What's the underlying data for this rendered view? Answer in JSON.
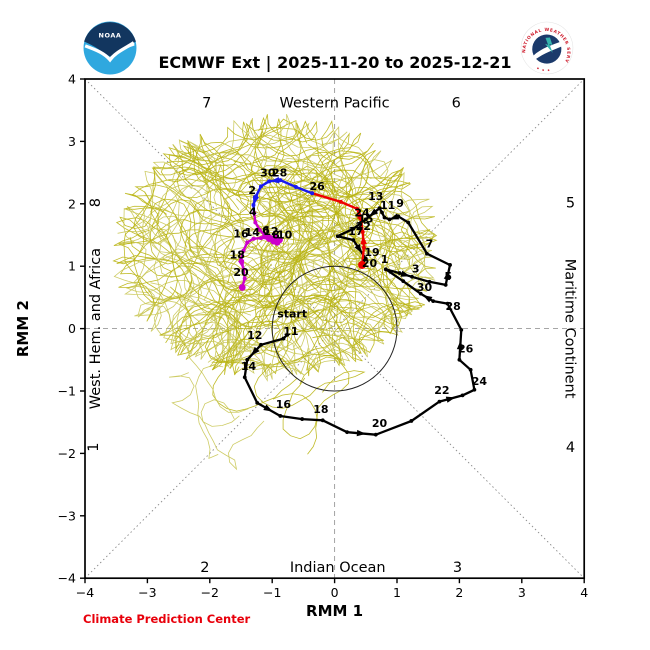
{
  "header": {
    "title": "ECMWF Ext | 2025-11-20 to 2025-12-21"
  },
  "logos": {
    "noaa_label": "NOAA",
    "nws_label": "NATIONAL WEATHER SERVICE"
  },
  "footer": {
    "credit": "Climate Prediction Center",
    "credit_color": "#e8000b"
  },
  "chart_data": {
    "type": "line",
    "title": "ECMWF Ext | 2025-11-20 to 2025-12-21",
    "xlabel": "RMM 1",
    "ylabel": "RMM 2",
    "xlim": [
      -4,
      4
    ],
    "ylim": [
      -4,
      4
    ],
    "xticks": [
      -4,
      -3,
      -2,
      -1,
      0,
      1,
      2,
      3,
      4
    ],
    "tick_labels": [
      "−4",
      "−3",
      "−2",
      "−1",
      "0",
      "1",
      "2",
      "3",
      "4"
    ],
    "grid": false,
    "unit_circle_radius": 1,
    "start_label": "start",
    "region_labels": [
      {
        "text": "7",
        "x": -2.05,
        "y": 3.62,
        "rotate": 0
      },
      {
        "text": "Western Pacific",
        "x": 0.0,
        "y": 3.62,
        "rotate": 0
      },
      {
        "text": "6",
        "x": 1.95,
        "y": 3.62,
        "rotate": 0
      },
      {
        "text": "8",
        "x": -3.84,
        "y": 2.02,
        "rotate": -90
      },
      {
        "text": "West. Hem. and Africa",
        "x": -3.84,
        "y": 0.0,
        "rotate": -90
      },
      {
        "text": "1",
        "x": -3.87,
        "y": -1.9,
        "rotate": -90
      },
      {
        "text": "5",
        "x": 3.78,
        "y": 2.02,
        "rotate": 0
      },
      {
        "text": "Maritime Continent",
        "x": 3.78,
        "y": 0.0,
        "rotate": 90
      },
      {
        "text": "4",
        "x": 3.78,
        "y": -1.9,
        "rotate": 0
      },
      {
        "text": "2",
        "x": -2.08,
        "y": -3.82,
        "rotate": 0
      },
      {
        "text": "Indian Ocean",
        "x": 0.05,
        "y": -3.82,
        "rotate": 0
      },
      {
        "text": "3",
        "x": 1.97,
        "y": -3.82,
        "rotate": 0
      }
    ],
    "observed": {
      "name": "observed-rmm",
      "color": "#000000",
      "points": [
        [
          -0.76,
          -0.1
        ],
        [
          -0.82,
          -0.16
        ],
        [
          -1.18,
          -0.26
        ],
        [
          -1.4,
          -0.5
        ],
        [
          -1.44,
          -0.78
        ],
        [
          -1.24,
          -1.19
        ],
        [
          -0.87,
          -1.4
        ],
        [
          -0.52,
          -1.45
        ],
        [
          -0.19,
          -1.47
        ],
        [
          0.2,
          -1.66
        ],
        [
          0.66,
          -1.7
        ],
        [
          1.23,
          -1.48
        ],
        [
          1.68,
          -1.17
        ],
        [
          2.05,
          -1.07
        ],
        [
          2.24,
          -0.98
        ],
        [
          2.18,
          -0.66
        ],
        [
          2.0,
          -0.5
        ],
        [
          2.03,
          -0.02
        ],
        [
          1.81,
          0.4
        ],
        [
          1.58,
          0.44
        ],
        [
          1.38,
          0.56
        ],
        [
          1.1,
          0.76
        ],
        [
          0.82,
          0.95
        ],
        [
          1.04,
          0.89
        ],
        [
          1.24,
          0.83
        ],
        [
          1.52,
          0.75
        ],
        [
          1.78,
          0.7
        ],
        [
          1.85,
          1.02
        ],
        [
          1.48,
          1.2
        ],
        [
          1.18,
          1.7
        ],
        [
          1.02,
          1.8
        ],
        [
          0.88,
          1.75
        ],
        [
          0.8,
          1.78
        ],
        [
          0.76,
          1.86
        ],
        [
          0.72,
          1.93
        ],
        [
          0.5,
          1.75
        ],
        [
          0.3,
          1.6
        ],
        [
          0.05,
          1.48
        ],
        [
          0.3,
          1.42
        ],
        [
          0.5,
          1.12
        ],
        [
          0.44,
          1.02
        ]
      ],
      "labels": [
        {
          "t": "start",
          "x": -0.68,
          "y": 0.18
        },
        {
          "t": "11",
          "x": -0.7,
          "y": -0.1
        },
        {
          "t": "12",
          "x": -1.28,
          "y": -0.17
        },
        {
          "t": "14",
          "x": -1.38,
          "y": -0.66
        },
        {
          "t": "16",
          "x": -0.82,
          "y": -1.27
        },
        {
          "t": "18",
          "x": -0.22,
          "y": -1.35
        },
        {
          "t": "20",
          "x": 0.72,
          "y": -1.58
        },
        {
          "t": "22",
          "x": 1.72,
          "y": -1.05
        },
        {
          "t": "24",
          "x": 2.32,
          "y": -0.9
        },
        {
          "t": "26",
          "x": 2.1,
          "y": -0.38
        },
        {
          "t": "28",
          "x": 1.9,
          "y": 0.3
        },
        {
          "t": "30",
          "x": 1.44,
          "y": 0.6
        },
        {
          "t": "1",
          "x": 0.8,
          "y": 1.05
        },
        {
          "t": "3",
          "x": 1.3,
          "y": 0.9
        },
        {
          "t": "5",
          "x": 1.82,
          "y": 0.78
        },
        {
          "t": "7",
          "x": 1.52,
          "y": 1.3
        },
        {
          "t": "9",
          "x": 1.05,
          "y": 1.95
        },
        {
          "t": "11",
          "x": 0.85,
          "y": 1.92
        },
        {
          "t": "13",
          "x": 0.66,
          "y": 2.06
        },
        {
          "t": "15",
          "x": 0.5,
          "y": 1.7
        },
        {
          "t": "17",
          "x": 0.34,
          "y": 1.5
        },
        {
          "t": "19",
          "x": 0.6,
          "y": 1.16
        }
      ]
    },
    "forecast": {
      "segments": [
        {
          "name": "week1",
          "color": "#ee0000",
          "points": [
            [
              0.44,
              1.02
            ],
            [
              0.47,
              1.3
            ],
            [
              0.45,
              1.55
            ],
            [
              0.42,
              1.76
            ],
            [
              0.36,
              1.92
            ],
            [
              0.1,
              2.03
            ],
            [
              -0.36,
              2.17
            ]
          ]
        },
        {
          "name": "week2",
          "color": "#1a1aee",
          "points": [
            [
              -0.36,
              2.17
            ],
            [
              -0.62,
              2.27
            ],
            [
              -0.87,
              2.38
            ],
            [
              -1.05,
              2.36
            ],
            [
              -1.18,
              2.28
            ],
            [
              -1.26,
              2.12
            ],
            [
              -1.3,
              1.98
            ],
            [
              -1.29,
              1.85
            ]
          ]
        },
        {
          "name": "weeks3to5",
          "color": "#cc00cc",
          "points": [
            [
              -1.29,
              1.85
            ],
            [
              -1.27,
              1.7
            ],
            [
              -1.2,
              1.58
            ],
            [
              -1.12,
              1.5
            ],
            [
              -1.05,
              1.44
            ],
            [
              -0.98,
              1.4
            ],
            [
              -0.92,
              1.38
            ],
            [
              -0.88,
              1.42
            ],
            [
              -0.95,
              1.47
            ],
            [
              -1.05,
              1.46
            ],
            [
              -1.18,
              1.45
            ],
            [
              -1.3,
              1.44
            ],
            [
              -1.4,
              1.38
            ],
            [
              -1.46,
              1.25
            ],
            [
              -1.5,
              1.1
            ],
            [
              -1.46,
              0.95
            ],
            [
              -1.44,
              0.8
            ],
            [
              -1.48,
              0.66
            ]
          ]
        }
      ],
      "labels": [
        {
          "t": "20",
          "x": 0.56,
          "y": 0.99
        },
        {
          "t": "22",
          "x": 0.46,
          "y": 1.58
        },
        {
          "t": "24",
          "x": 0.44,
          "y": 1.8
        },
        {
          "t": "26",
          "x": -0.28,
          "y": 2.22
        },
        {
          "t": "28",
          "x": -0.88,
          "y": 2.44
        },
        {
          "t": "30",
          "x": -1.07,
          "y": 2.44
        },
        {
          "t": "2",
          "x": -1.32,
          "y": 2.16
        },
        {
          "t": "4",
          "x": -1.31,
          "y": 1.81
        },
        {
          "t": "6",
          "x": -1.1,
          "y": 1.52
        },
        {
          "t": "8",
          "x": -0.94,
          "y": 1.44
        },
        {
          "t": "10",
          "x": -0.8,
          "y": 1.44
        },
        {
          "t": "12",
          "x": -1.02,
          "y": 1.5
        },
        {
          "t": "14",
          "x": -1.32,
          "y": 1.48
        },
        {
          "t": "16",
          "x": -1.5,
          "y": 1.46
        },
        {
          "t": "18",
          "x": -1.56,
          "y": 1.12
        },
        {
          "t": "20",
          "x": -1.5,
          "y": 0.84
        }
      ],
      "start_marker": {
        "x": 0.44,
        "y": 1.02
      },
      "end_marker": {
        "x": -1.48,
        "y": 0.66
      }
    },
    "ensemble": {
      "name": "ensemble-members",
      "color": "#b9b411",
      "color2": "#c9c755",
      "count": 78,
      "seed": 11,
      "center": [
        -0.95,
        1.3
      ],
      "spread": [
        1.45,
        1.1
      ],
      "bound": [
        2.5,
        2.0
      ],
      "extra_count": 9,
      "extra_center": [
        -1.1,
        -0.9
      ],
      "extra_spread": [
        0.7,
        0.6
      ],
      "extra_bound": [
        1.5,
        1.4
      ]
    }
  }
}
